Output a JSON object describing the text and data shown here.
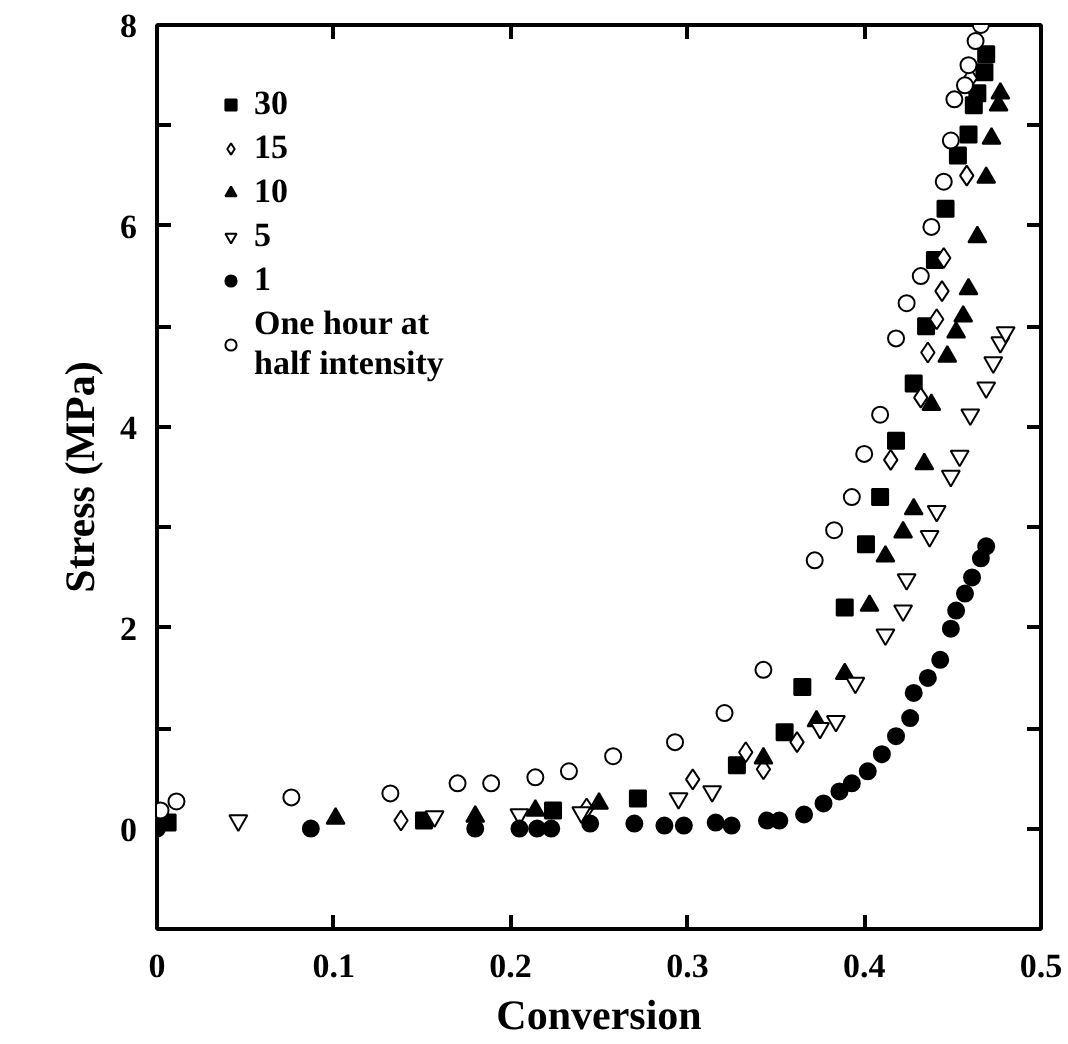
{
  "chart_data": {
    "type": "scatter",
    "xlabel": "Conversion",
    "ylabel": "Stress (MPa)",
    "xlim": [
      0,
      0.5
    ],
    "ylim": [
      -1,
      8
    ],
    "xticks": [
      0,
      0.1,
      0.2,
      0.3,
      0.4,
      0.5
    ],
    "yticks": [
      0,
      {
        "value": 1,
        "label": null
      },
      2,
      {
        "value": 3,
        "label": null
      },
      4,
      {
        "value": 5,
        "label": null
      },
      6,
      {
        "value": 7,
        "label": null
      },
      8
    ],
    "grid": false,
    "legend": "top left",
    "series": [
      {
        "name": "30",
        "color": "#000000",
        "marker": "square",
        "x": [
          0.006,
          0.151,
          0.224,
          0.272,
          0.328,
          0.355,
          0.365,
          0.389,
          0.401,
          0.409,
          0.418,
          0.428,
          0.435,
          0.44,
          0.446,
          0.453,
          0.459,
          0.462,
          0.464,
          0.468,
          0.469
        ],
        "values": [
          0.06,
          0.08,
          0.18,
          0.3,
          0.63,
          0.96,
          1.41,
          2.2,
          2.83,
          3.3,
          3.86,
          4.43,
          5.0,
          5.66,
          6.17,
          6.7,
          6.91,
          7.2,
          7.32,
          7.53,
          7.71
        ]
      },
      {
        "name": "15",
        "color": "#000000",
        "marker": "diamond_open",
        "x": [
          0.138,
          0.243,
          0.303,
          0.333,
          0.343,
          0.362,
          0.415,
          0.432,
          0.436,
          0.441,
          0.444,
          0.445,
          0.458,
          0.46
        ],
        "values": [
          0.08,
          0.2,
          0.49,
          0.76,
          0.59,
          0.86,
          3.67,
          4.29,
          4.74,
          5.07,
          5.35,
          5.68,
          6.5,
          7.47
        ]
      },
      {
        "name": "10",
        "color": "#000000",
        "marker": "triangle",
        "x": [
          0.101,
          0.18,
          0.214,
          0.25,
          0.343,
          0.373,
          0.389,
          0.403,
          0.412,
          0.422,
          0.428,
          0.434,
          0.438,
          0.447,
          0.452,
          0.456,
          0.459,
          0.464,
          0.469,
          0.472,
          0.476,
          0.477
        ],
        "values": [
          0.1,
          0.12,
          0.18,
          0.25,
          0.7,
          1.07,
          1.54,
          2.22,
          2.71,
          2.95,
          3.18,
          3.63,
          4.22,
          4.7,
          4.94,
          5.1,
          5.37,
          5.89,
          6.48,
          6.87,
          7.2,
          7.32
        ]
      },
      {
        "name": "5",
        "color": "#000000",
        "marker": "triangle_open",
        "x": [
          0.046,
          0.157,
          0.205,
          0.24,
          0.295,
          0.314,
          0.375,
          0.384,
          0.395,
          0.412,
          0.422,
          0.424,
          0.437,
          0.441,
          0.449,
          0.454,
          0.46,
          0.469,
          0.473,
          0.477,
          0.48
        ],
        "values": [
          0.08,
          0.12,
          0.14,
          0.16,
          0.3,
          0.37,
          1.0,
          1.07,
          1.45,
          1.93,
          2.17,
          2.48,
          2.91,
          3.16,
          3.51,
          3.71,
          4.12,
          4.39,
          4.64,
          4.84,
          4.94
        ]
      },
      {
        "name": "1",
        "color": "#000000",
        "marker": "circle",
        "x": [
          0.0,
          0.087,
          0.18,
          0.205,
          0.215,
          0.223,
          0.245,
          0.27,
          0.287,
          0.298,
          0.316,
          0.325,
          0.345,
          0.352,
          0.366,
          0.377,
          0.386,
          0.393,
          0.402,
          0.41,
          0.418,
          0.426,
          0.428,
          0.436,
          0.443,
          0.449,
          0.452,
          0.457,
          0.461,
          0.466,
          0.469
        ],
        "values": [
          0.0,
          0.0,
          0.0,
          0.0,
          0.0,
          0.0,
          0.05,
          0.05,
          0.03,
          0.03,
          0.06,
          0.03,
          0.08,
          0.08,
          0.14,
          0.25,
          0.37,
          0.45,
          0.57,
          0.74,
          0.92,
          1.1,
          1.35,
          1.5,
          1.68,
          1.99,
          2.17,
          2.34,
          2.5,
          2.69,
          2.81
        ]
      },
      {
        "name": "One hour at\nhalf intensity",
        "color": "#000000",
        "marker": "circle_open",
        "x": [
          0.002,
          0.011,
          0.076,
          0.132,
          0.17,
          0.189,
          0.214,
          0.233,
          0.258,
          0.293,
          0.321,
          0.343,
          0.372,
          0.383,
          0.393,
          0.4,
          0.409,
          0.418,
          0.424,
          0.432,
          0.438,
          0.445,
          0.449,
          0.451,
          0.457,
          0.459,
          0.463,
          0.466
        ],
        "values": [
          0.18,
          0.27,
          0.31,
          0.35,
          0.45,
          0.45,
          0.51,
          0.57,
          0.72,
          0.86,
          1.15,
          1.58,
          2.67,
          2.97,
          3.3,
          3.73,
          4.12,
          4.88,
          5.23,
          5.5,
          5.99,
          6.44,
          6.85,
          7.26,
          7.4,
          7.6,
          7.84,
          8.0
        ]
      }
    ]
  }
}
